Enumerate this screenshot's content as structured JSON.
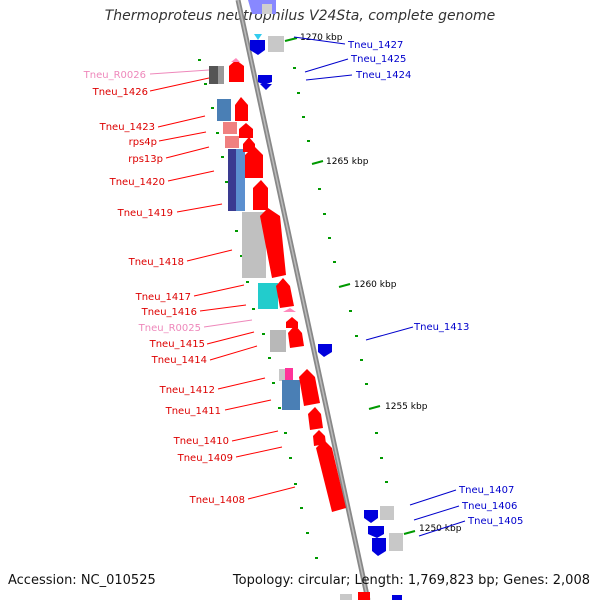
{
  "title": "Thermoproteus neutrophilus V24Sta, complete genome",
  "footer": {
    "accession": "Accession: NC_010525",
    "summary": "Topology: circular; Length: 1,769,823 bp; Genes: 2,008"
  },
  "colors": {
    "forward_cds": "#ff0000",
    "reverse_cds": "#0000dd",
    "rna_label": "#ee88bb",
    "tick": "#009900",
    "backbone": "#888888",
    "gray_block": "#c0c0c0",
    "steel_block": "#4a7fb5",
    "salmon_block": "#f08080",
    "indigo_block": "#3a3a90",
    "cyan_block": "#22cccc",
    "magenta_block": "#ff3399"
  },
  "scale_labels": [
    "1270 kbp",
    "1265 kbp",
    "1260 kbp",
    "1255 kbp",
    "1250 kbp"
  ],
  "left_labels": [
    {
      "text": "Tneu_R0026",
      "kind": "rna"
    },
    {
      "text": "Tneu_1426",
      "kind": "forward"
    },
    {
      "text": "Tneu_1423",
      "kind": "forward"
    },
    {
      "text": "rps4p",
      "kind": "forward"
    },
    {
      "text": "rps13p",
      "kind": "forward"
    },
    {
      "text": "Tneu_1420",
      "kind": "forward"
    },
    {
      "text": "Tneu_1419",
      "kind": "forward"
    },
    {
      "text": "Tneu_1418",
      "kind": "forward"
    },
    {
      "text": "Tneu_1417",
      "kind": "forward"
    },
    {
      "text": "Tneu_1416",
      "kind": "forward"
    },
    {
      "text": "Tneu_R0025",
      "kind": "rna"
    },
    {
      "text": "Tneu_1415",
      "kind": "forward"
    },
    {
      "text": "Tneu_1414",
      "kind": "forward"
    },
    {
      "text": "Tneu_1412",
      "kind": "forward"
    },
    {
      "text": "Tneu_1411",
      "kind": "forward"
    },
    {
      "text": "Tneu_1410",
      "kind": "forward"
    },
    {
      "text": "Tneu_1409",
      "kind": "forward"
    },
    {
      "text": "Tneu_1408",
      "kind": "forward"
    }
  ],
  "right_labels": [
    {
      "text": "Tneu_1427",
      "kind": "reverse"
    },
    {
      "text": "Tneu_1425",
      "kind": "reverse"
    },
    {
      "text": "Tneu_1424",
      "kind": "reverse"
    },
    {
      "text": "Tneu_1413",
      "kind": "reverse"
    },
    {
      "text": "Tneu_1407",
      "kind": "reverse"
    },
    {
      "text": "Tneu_1406",
      "kind": "reverse"
    },
    {
      "text": "Tneu_1405",
      "kind": "reverse"
    }
  ]
}
